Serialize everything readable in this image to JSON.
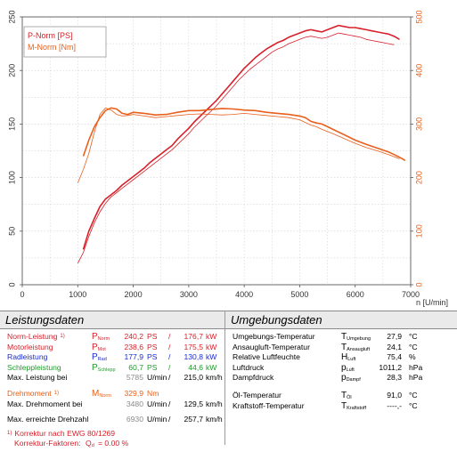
{
  "colors": {
    "red": "#d8202a",
    "orange": "#e8601c",
    "blue": "#1a2bd0",
    "green": "#1e9b2a",
    "gray": "#8a8a8a"
  },
  "chart_data": {
    "type": "line",
    "xlabel": "n [U/min]",
    "xlim": [
      0,
      7000
    ],
    "x_ticks": [
      "0",
      "1000",
      "2000",
      "3000",
      "4000",
      "5000",
      "6000",
      "7000"
    ],
    "ylim_left": [
      0,
      250
    ],
    "y_ticks_left": [
      "0",
      "50",
      "100",
      "150",
      "200",
      "250"
    ],
    "ylim_right": [
      0,
      500
    ],
    "y_ticks_right": [
      "0",
      "100",
      "200",
      "300",
      "400",
      "500"
    ],
    "grid": true,
    "legend": {
      "placement": "top-left",
      "entries": [
        "P-Norm [PS]",
        "M-Norm [Nm]"
      ]
    },
    "series": [
      {
        "name": "P-Norm [PS]",
        "axis": "left",
        "color": "#d8202a",
        "width": 1.6,
        "x": [
          1100,
          1200,
          1300,
          1400,
          1500,
          1600,
          1700,
          1800,
          1900,
          2000,
          2100,
          2200,
          2300,
          2400,
          2500,
          2600,
          2700,
          2800,
          2900,
          3000,
          3100,
          3200,
          3300,
          3400,
          3500,
          3600,
          3700,
          3800,
          3900,
          4000,
          4100,
          4200,
          4300,
          4400,
          4500,
          4600,
          4700,
          4800,
          4900,
          5000,
          5100,
          5200,
          5300,
          5400,
          5500,
          5600,
          5700,
          5800,
          5900,
          6000,
          6100,
          6200,
          6300,
          6400,
          6500,
          6600,
          6700,
          6800
        ],
        "values": [
          33,
          50,
          62,
          73,
          80,
          84,
          88,
          93,
          97,
          101,
          105,
          109,
          114,
          118,
          122,
          126,
          130,
          136,
          141,
          146,
          152,
          157,
          162,
          167,
          172,
          178,
          184,
          190,
          196,
          202,
          207,
          212,
          216,
          220,
          223,
          226,
          228,
          231,
          233,
          235,
          237,
          238,
          237,
          236,
          238,
          240,
          242,
          241,
          240,
          240,
          239,
          238,
          237,
          236,
          235,
          234,
          232,
          229
        ]
      },
      {
        "name": "P-Norm [PS] (2)",
        "axis": "left",
        "color": "#d8202a",
        "width": 0.8,
        "x": [
          1000,
          1100,
          1200,
          1300,
          1400,
          1500,
          1600,
          1700,
          1800,
          1900,
          2000,
          2100,
          2200,
          2300,
          2400,
          2500,
          2600,
          2700,
          2800,
          2900,
          3000,
          3100,
          3200,
          3300,
          3400,
          3500,
          3600,
          3700,
          3800,
          3900,
          4000,
          4100,
          4200,
          4300,
          4400,
          4500,
          4600,
          4700,
          4800,
          4900,
          5000,
          5100,
          5200,
          5300,
          5400,
          5500,
          5600,
          5700,
          5800,
          5900,
          6000,
          6100,
          6200,
          6300,
          6400,
          6500,
          6600,
          6700
        ],
        "values": [
          20,
          30,
          45,
          58,
          68,
          76,
          82,
          86,
          90,
          94,
          98,
          102,
          106,
          110,
          114,
          118,
          122,
          126,
          131,
          136,
          141,
          147,
          152,
          157,
          162,
          167,
          173,
          179,
          185,
          191,
          196,
          201,
          205,
          209,
          213,
          217,
          220,
          222,
          225,
          227,
          229,
          231,
          232,
          231,
          230,
          231,
          233,
          235,
          234,
          233,
          232,
          231,
          229,
          228,
          227,
          226,
          225,
          224
        ]
      },
      {
        "name": "M-Norm [Nm]",
        "axis": "right",
        "color": "#e8601c",
        "width": 1.6,
        "x": [
          1100,
          1200,
          1300,
          1400,
          1500,
          1600,
          1700,
          1800,
          1900,
          2000,
          2200,
          2400,
          2600,
          2800,
          3000,
          3200,
          3400,
          3600,
          3800,
          4000,
          4200,
          4400,
          4600,
          4800,
          5000,
          5100,
          5200,
          5300,
          5400,
          5500,
          5600,
          5800,
          6000,
          6200,
          6400,
          6600,
          6800,
          6900
        ],
        "values": [
          240,
          270,
          295,
          312,
          325,
          330,
          328,
          320,
          318,
          322,
          320,
          317,
          318,
          322,
          325,
          325,
          327,
          329,
          328,
          326,
          325,
          322,
          320,
          318,
          315,
          312,
          305,
          302,
          300,
          295,
          290,
          280,
          270,
          262,
          255,
          248,
          238,
          232
        ]
      },
      {
        "name": "M-Norm [Nm] (2)",
        "axis": "right",
        "color": "#e8601c",
        "width": 0.8,
        "x": [
          1000,
          1100,
          1200,
          1300,
          1400,
          1500,
          1600,
          1700,
          1800,
          1900,
          2000,
          2200,
          2400,
          2600,
          2800,
          3000,
          3200,
          3400,
          3600,
          3800,
          4000,
          4200,
          4400,
          4600,
          4800,
          5000,
          5100,
          5200,
          5300,
          5400,
          5600,
          5800,
          6000,
          6200,
          6400,
          6600,
          6800
        ],
        "values": [
          190,
          215,
          245,
          285,
          318,
          330,
          326,
          318,
          315,
          316,
          318,
          315,
          312,
          314,
          316,
          318,
          319,
          318,
          317,
          318,
          320,
          318,
          316,
          314,
          312,
          308,
          303,
          298,
          295,
          290,
          282,
          273,
          264,
          256,
          250,
          243,
          235
        ]
      }
    ]
  },
  "left_panel": {
    "title": "Leistungsdaten",
    "rows": [
      {
        "label": "Norm-Leistung",
        "sup": "1)",
        "sym": "P",
        "sub": "Norm",
        "v1": "240,2",
        "u1": "PS",
        "sep": "/",
        "v2": "176,7",
        "u2": "kW",
        "color": "red"
      },
      {
        "label": "Motorleistung",
        "sym": "P",
        "sub": "Mot",
        "v1": "238,6",
        "u1": "PS",
        "sep": "/",
        "v2": "175,5",
        "u2": "kW",
        "color": "red"
      },
      {
        "label": "Radleistung",
        "sym": "P",
        "sub": "Rad",
        "v1": "177,9",
        "u1": "PS",
        "sep": "/",
        "v2": "130,8",
        "u2": "kW",
        "color": "blue"
      },
      {
        "label": "Schleppleistung",
        "sym": "P",
        "sub": "Schlepp",
        "v1": "60,7",
        "u1": "PS",
        "sep": "/",
        "v2": "44,6",
        "u2": "kW",
        "color": "green"
      },
      {
        "label": "Max. Leistung bei",
        "v1": "5785",
        "u1": "U/min",
        "sep": "/",
        "v2": "215,0",
        "u2": "km/h",
        "color": "black",
        "grayfirst": true
      }
    ],
    "drehmoment": {
      "label": "Drehmoment",
      "sup": "1)",
      "sym": "M",
      "sub": "Norm",
      "v1": "329,9",
      "u1": "Nm"
    },
    "max_drehmoment": {
      "label": "Max. Drehmoment bei",
      "v1": "3480",
      "u1": "U/min",
      "sep": "/",
      "v2": "129,5",
      "u2": "km/h"
    },
    "max_drehzahl": {
      "label": "Max. erreichte Drehzahl",
      "v1": "6930",
      "u1": "U/min",
      "sep": "/",
      "v2": "257,7",
      "u2": "km/h"
    },
    "korrektur": "Korrektur nach EWG 80/1269",
    "korrektur_sup": "1)",
    "faktoren_label": "Korrektur-Faktoren:",
    "faktoren_sym": "Q",
    "faktoren_sub": "d",
    "faktoren_value": "=    0.00 %"
  },
  "right_panel": {
    "title": "Umgebungsdaten",
    "rows": [
      {
        "label": "Umgebungs-Temperatur",
        "sym": "T",
        "sub": "Umgebung",
        "value": "27,9",
        "unit": "°C"
      },
      {
        "label": "Ansaugluft-Temperatur",
        "sym": "T",
        "sub": "Ansaugluft",
        "value": "24,1",
        "unit": "°C"
      },
      {
        "label": "Relative Luftfeuchte",
        "sym": "H",
        "sub": "Luft",
        "value": "75,4",
        "unit": "%"
      },
      {
        "label": "Luftdruck",
        "sym": "p",
        "sub": "Luft",
        "value": "1011,2",
        "unit": "hPa"
      },
      {
        "label": "Dampfdruck",
        "sym": "p",
        "sub": "Dampf",
        "value": "28,3",
        "unit": "hPa"
      }
    ],
    "rows2": [
      {
        "label": "Öl-Temperatur",
        "sym": "T",
        "sub": "Öl",
        "value": "91,0",
        "unit": "°C"
      },
      {
        "label": "Kraftstoff-Temperatur",
        "sym": "T",
        "sub": "Kraftstoff",
        "value": "----,-",
        "unit": "°C"
      }
    ]
  }
}
